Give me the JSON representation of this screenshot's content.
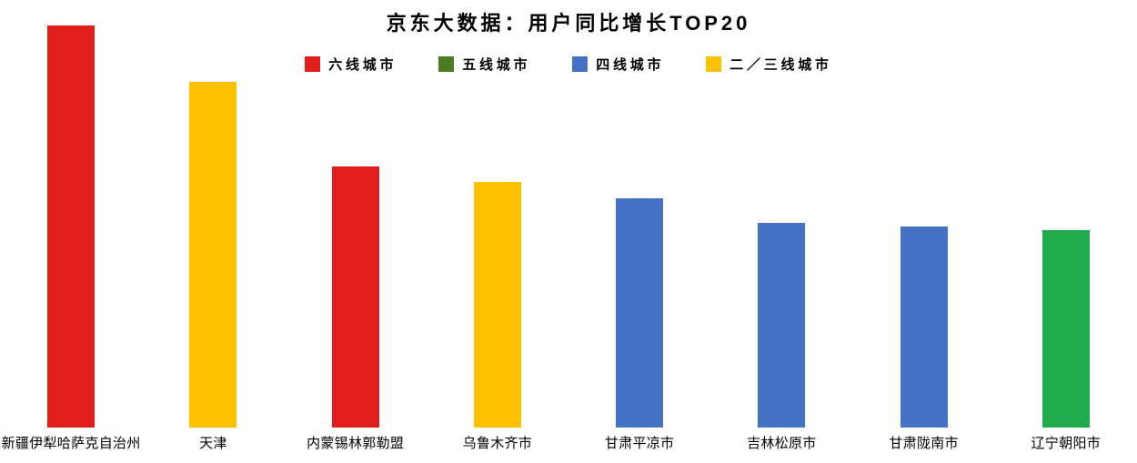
{
  "title": "京东大数据：用户同比增长TOP20",
  "legend": {
    "position": "top",
    "items": [
      {
        "label": "六线城市",
        "color": "#e01f1d"
      },
      {
        "label": "五线城市",
        "color": "#4a7e23"
      },
      {
        "label": "四线城市",
        "color": "#4472c4"
      },
      {
        "label": "二／三线城市",
        "color": "#ffc000"
      }
    ]
  },
  "chart_data": {
    "type": "bar",
    "title": "京东大数据：用户同比增长TOP20",
    "categories": [
      "新疆伊犁哈萨克自治州",
      "天津",
      "内蒙锡林郭勒盟",
      "乌鲁木齐市",
      "甘肃平凉市",
      "吉林松原市",
      "甘肃陇南市",
      "辽宁朝阳市"
    ],
    "values": [
      100,
      86,
      65,
      61,
      57,
      51,
      50,
      49
    ],
    "tiers": [
      "六线城市",
      "二／三线城市",
      "六线城市",
      "二／三线城市",
      "四线城市",
      "四线城市",
      "四线城市",
      "五线城市"
    ],
    "colors": [
      "#e01f1d",
      "#ffc000",
      "#e01f1d",
      "#ffc000",
      "#4472c4",
      "#4472c4",
      "#4472c4",
      "#21a94d"
    ],
    "xlabel": "",
    "ylabel": "",
    "ylim": [
      0,
      100
    ],
    "y_axis_visible": false,
    "gridlines": false,
    "value_labels_visible": false,
    "note": "values are relative bar heights normalized to 100; no numeric axis shown in source",
    "legend_position": "top"
  }
}
